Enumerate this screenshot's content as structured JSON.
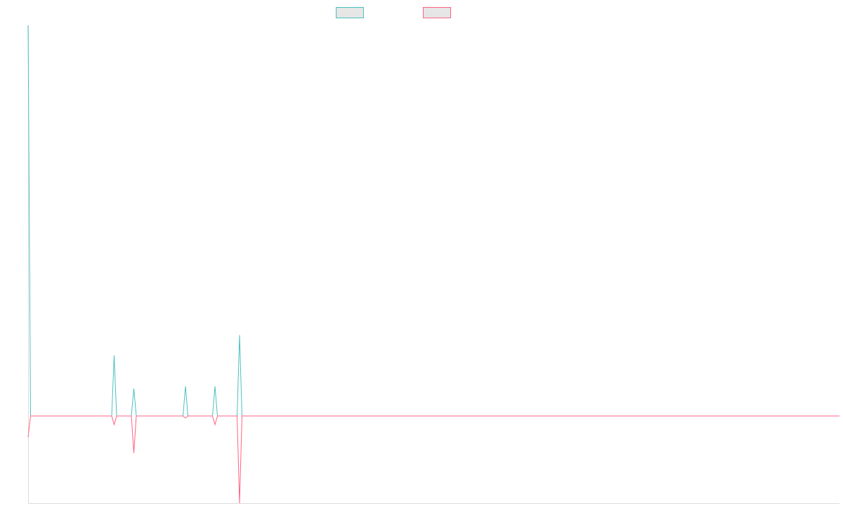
{
  "chart_data": {
    "type": "line",
    "x": [
      0,
      1,
      34,
      35,
      36,
      42,
      43,
      44,
      63,
      64,
      65,
      75,
      76,
      77,
      85,
      86,
      87,
      330
    ],
    "series": [
      {
        "color": "#4bc0c0",
        "values": [
          100,
          0,
          0,
          15.5,
          0,
          0,
          7,
          0,
          0,
          7.6,
          0,
          0,
          7.6,
          0,
          0,
          20.7,
          0,
          0
        ]
      },
      {
        "color": "#ff6384",
        "values": [
          -5.4,
          0,
          0,
          -2.2,
          0,
          0,
          -9.5,
          0,
          0,
          -0.5,
          0,
          0,
          -2.2,
          0,
          0,
          -22.3,
          0,
          0
        ]
      }
    ],
    "xlim": [
      0,
      330
    ],
    "ylim": [
      -22.3,
      100
    ],
    "legend": "top"
  }
}
